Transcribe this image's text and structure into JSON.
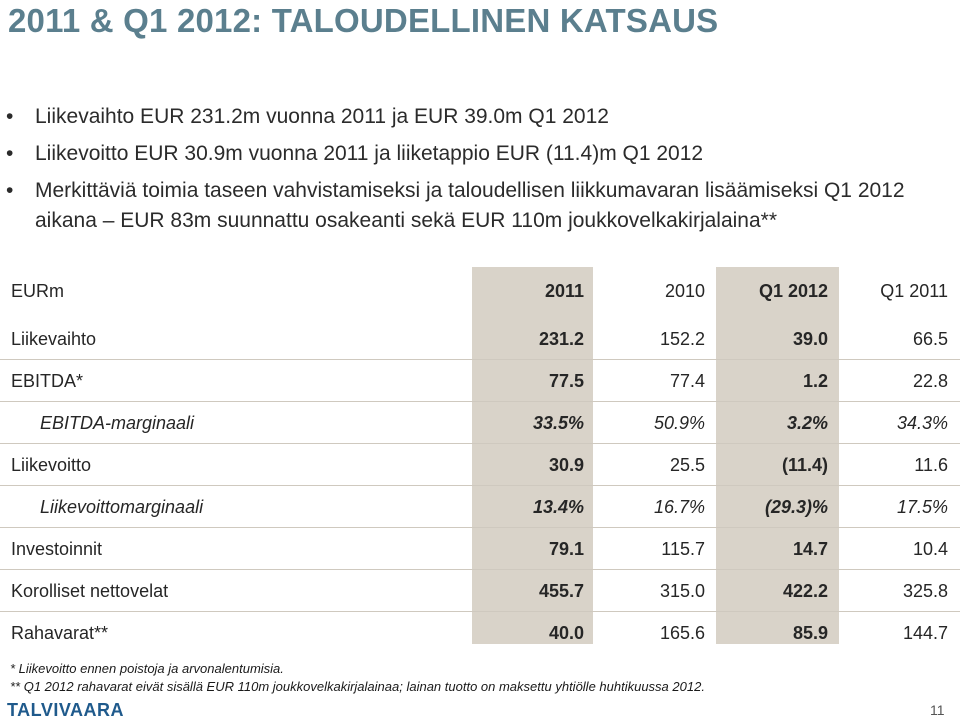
{
  "title": "2011 & Q1 2012: TALOUDELLINEN KATSAUS",
  "bullets": [
    "Liikevaihto EUR 231.2m vuonna 2011 ja EUR 39.0m Q1 2012",
    "Liikevoitto EUR 30.9m vuonna 2011 ja liiketappio EUR (11.4)m Q1 2012",
    "Merkittäviä toimia taseen vahvistamiseksi ja taloudellisen liikkumavaran lisäämiseksi Q1 2012 aikana – EUR 83m suunnattu osakeanti sekä EUR 110m joukkovelkakirjalaina**"
  ],
  "table": {
    "header": {
      "label": "EURm",
      "c1": "2011",
      "c2": "2010",
      "c3": "Q1 2012",
      "c4": "Q1 2011"
    },
    "rows": [
      {
        "label": "Liikevaihto",
        "c1": "231.2",
        "c2": "152.2",
        "c3": "39.0",
        "c4": "66.5"
      },
      {
        "label": "EBITDA*",
        "c1": "77.5",
        "c2": "77.4",
        "c3": "1.2",
        "c4": "22.8"
      },
      {
        "label": "EBITDA-marginaali",
        "c1": "33.5%",
        "c2": "50.9%",
        "c3": "3.2%",
        "c4": "34.3%"
      },
      {
        "label": "Liikevoitto",
        "c1": "30.9",
        "c2": "25.5",
        "c3": "(11.4)",
        "c4": "11.6"
      },
      {
        "label": "Liikevoittomarginaali",
        "c1": "13.4%",
        "c2": "16.7%",
        "c3": "(29.3)%",
        "c4": "17.5%"
      },
      {
        "label": "Investoinnit",
        "c1": "79.1",
        "c2": "115.7",
        "c3": "14.7",
        "c4": "10.4"
      },
      {
        "label": "Korolliset nettovelat",
        "c1": "455.7",
        "c2": "315.0",
        "c3": "422.2",
        "c4": "325.8"
      },
      {
        "label": "Rahavarat**",
        "c1": "40.0",
        "c2": "165.6",
        "c3": "85.9",
        "c4": "144.7"
      }
    ]
  },
  "footnotes": {
    "f1": "* Liikevoitto ennen poistoja ja arvonalentumisia.",
    "f2": "** Q1 2012 rahavarat eivät sisällä EUR 110m joukkovelkakirjalainaa; lainan tuotto on maksettu yhtiölle huhtikuussa 2012."
  },
  "logo": "TALVIVAARA",
  "page_number": "11",
  "colors": {
    "title": "#5b7f8e",
    "shade": "#d9d3c9",
    "logo": "#1f5a8c"
  }
}
